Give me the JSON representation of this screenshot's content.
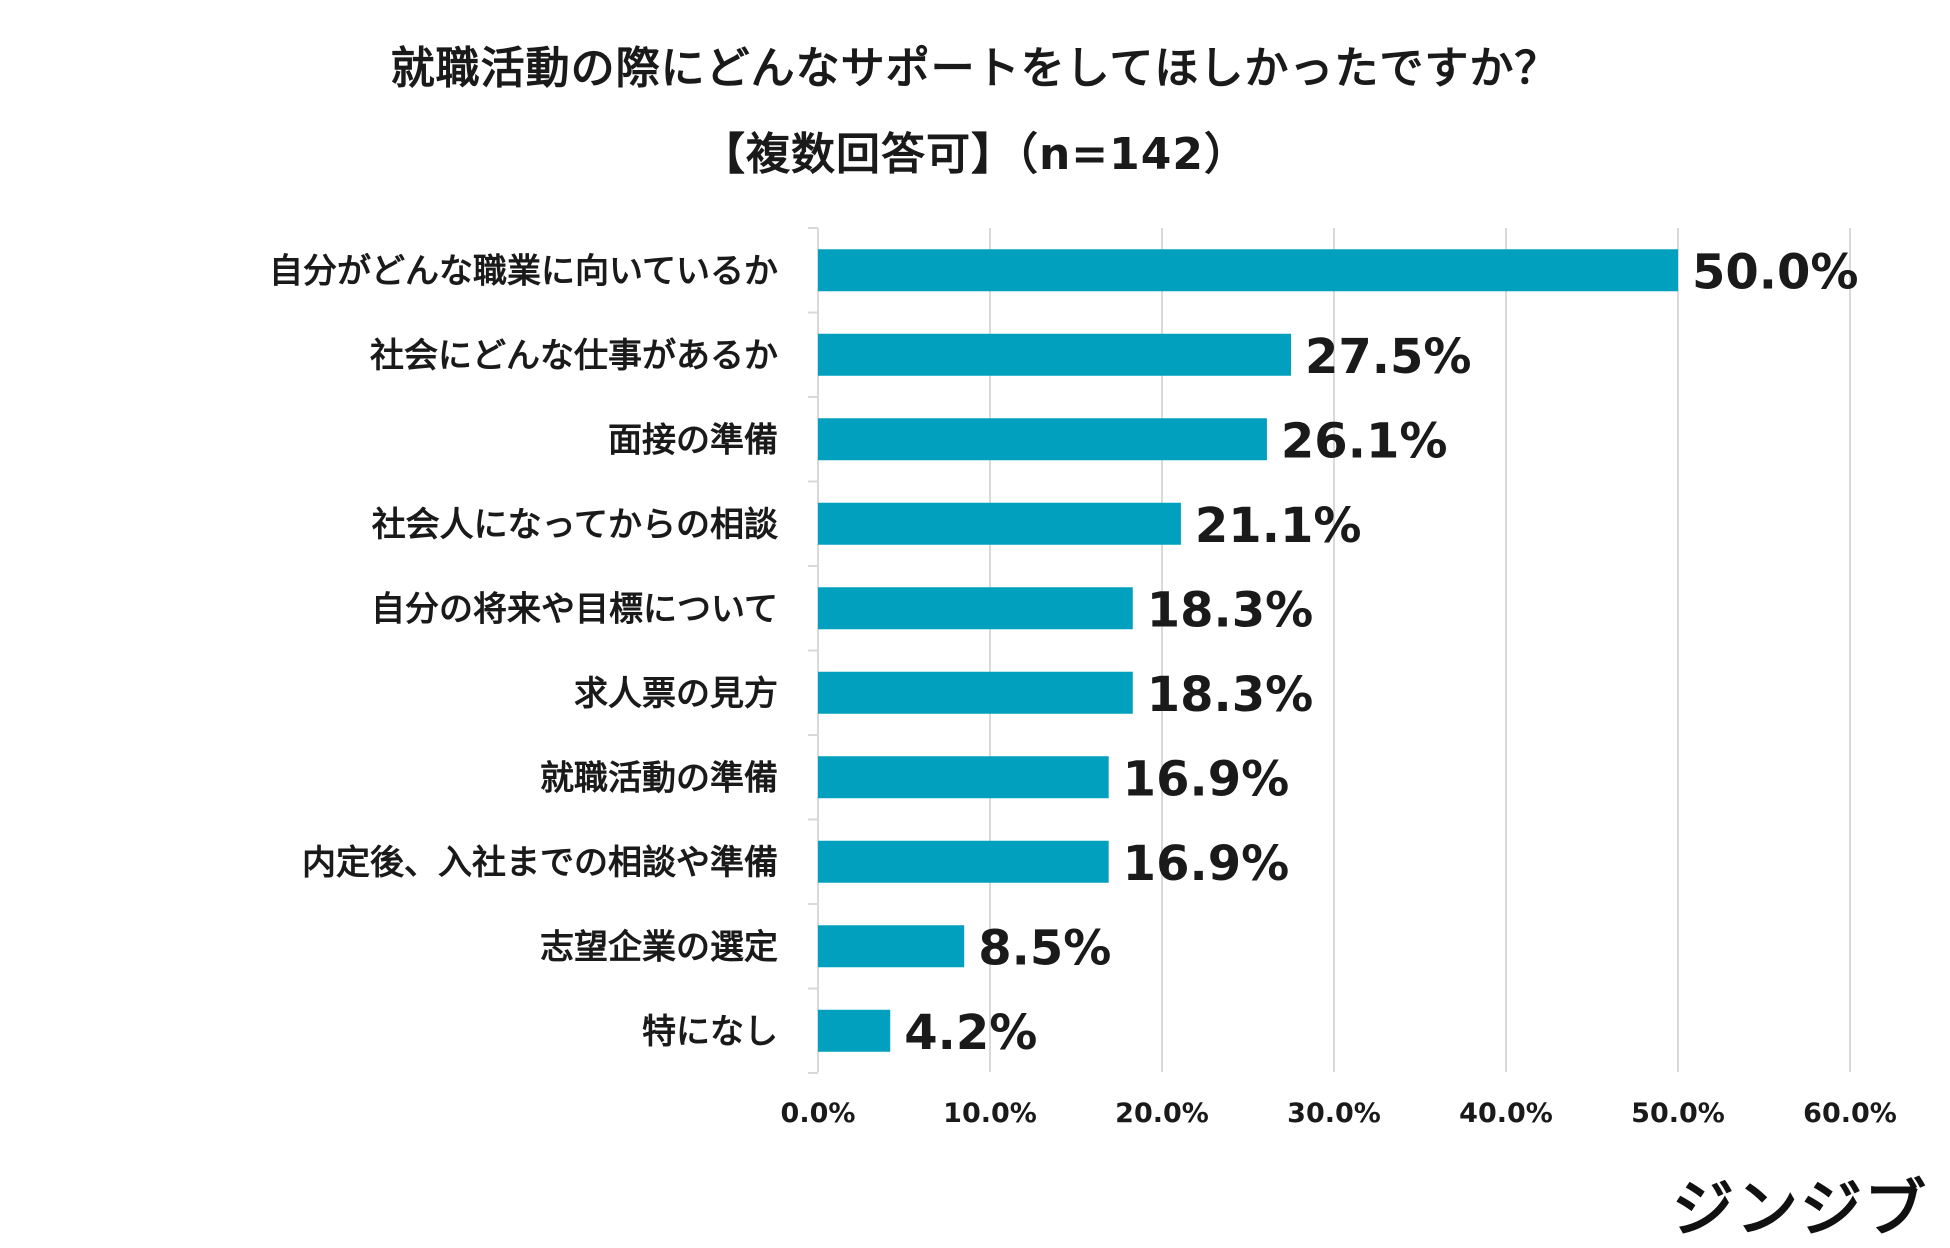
{
  "chart_data": {
    "type": "bar",
    "orientation": "horizontal",
    "title": "就職活動の際にどんなサポートをしてほしかったですか？",
    "subtitle": "【複数回答可】（n=142）",
    "categories": [
      "自分がどんな職業に向いているか",
      "社会にどんな仕事があるか",
      "面接の準備",
      "社会人になってからの相談",
      "自分の将来や目標について",
      "求人票の見方",
      "就職活動の準備",
      "内定後、入社までの相談や準備",
      "志望企業の選定",
      "特になし"
    ],
    "values": [
      50.0,
      27.5,
      26.1,
      21.1,
      18.3,
      18.3,
      16.9,
      16.9,
      8.5,
      4.2
    ],
    "value_labels": [
      "50.0%",
      "27.5%",
      "26.1%",
      "21.1%",
      "18.3%",
      "18.3%",
      "16.9%",
      "16.9%",
      "8.5%",
      "4.2%"
    ],
    "xlim": [
      0,
      60
    ],
    "x_ticks": [
      0,
      10,
      20,
      30,
      40,
      50,
      60
    ],
    "x_tick_labels": [
      "0.0%",
      "10.0%",
      "20.0%",
      "30.0%",
      "40.0%",
      "50.0%",
      "60.0%"
    ],
    "xlabel": "",
    "ylabel": "",
    "grid": true,
    "bar_color": "#00a0be",
    "grid_color": "#d9d9d9",
    "text_color": "#1a1a1a"
  },
  "brand": {
    "logo_text": "ジンジブ"
  }
}
